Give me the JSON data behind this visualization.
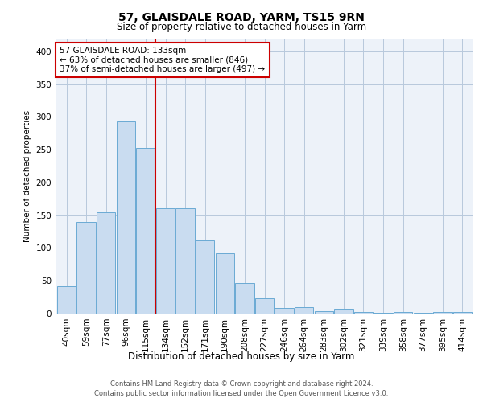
{
  "title1": "57, GLAISDALE ROAD, YARM, TS15 9RN",
  "title2": "Size of property relative to detached houses in Yarm",
  "xlabel": "Distribution of detached houses by size in Yarm",
  "ylabel": "Number of detached properties",
  "categories": [
    "40sqm",
    "59sqm",
    "77sqm",
    "96sqm",
    "115sqm",
    "134sqm",
    "152sqm",
    "171sqm",
    "190sqm",
    "208sqm",
    "227sqm",
    "246sqm",
    "264sqm",
    "283sqm",
    "302sqm",
    "321sqm",
    "339sqm",
    "358sqm",
    "377sqm",
    "395sqm",
    "414sqm"
  ],
  "values": [
    42,
    140,
    155,
    293,
    252,
    161,
    161,
    112,
    92,
    46,
    23,
    8,
    10,
    4,
    7,
    3,
    1,
    2,
    1,
    3,
    3
  ],
  "bar_color": "#c9dcf0",
  "bar_edgecolor": "#6aaad4",
  "vline_x_index": 5,
  "vline_color": "#cc0000",
  "annotation_line1": "57 GLAISDALE ROAD: 133sqm",
  "annotation_line2": "← 63% of detached houses are smaller (846)",
  "annotation_line3": "37% of semi-detached houses are larger (497) →",
  "annotation_box_color": "#ffffff",
  "annotation_box_edgecolor": "#cc0000",
  "ylim": [
    0,
    420
  ],
  "yticks": [
    0,
    50,
    100,
    150,
    200,
    250,
    300,
    350,
    400
  ],
  "footer1": "Contains HM Land Registry data © Crown copyright and database right 2024.",
  "footer2": "Contains public sector information licensed under the Open Government Licence v3.0.",
  "bg_color": "#edf2f9",
  "fig_color": "#ffffff"
}
